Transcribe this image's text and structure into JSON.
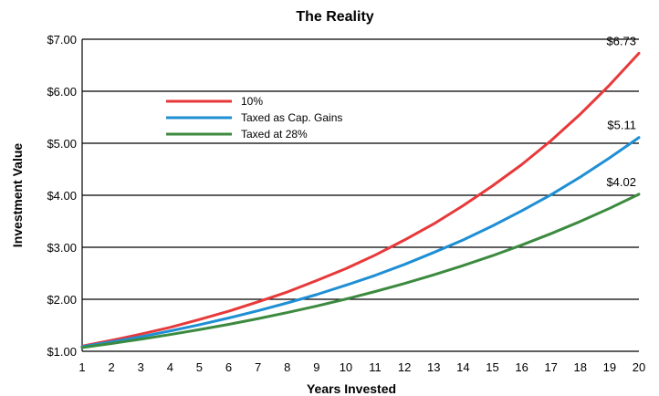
{
  "chart_data": {
    "type": "line",
    "title": "The Reality",
    "xlabel": "Years Invested",
    "ylabel": "Investment Value",
    "x": [
      1,
      2,
      3,
      4,
      5,
      6,
      7,
      8,
      9,
      10,
      11,
      12,
      13,
      14,
      15,
      16,
      17,
      18,
      19,
      20
    ],
    "xticks": [
      "1",
      "2",
      "3",
      "4",
      "5",
      "6",
      "7",
      "8",
      "9",
      "10",
      "11",
      "12",
      "13",
      "14",
      "15",
      "16",
      "17",
      "18",
      "19",
      "20"
    ],
    "yticks": [
      "$1.00",
      "$2.00",
      "$3.00",
      "$4.00",
      "$5.00",
      "$6.00",
      "$7.00"
    ],
    "ylim": [
      1,
      7
    ],
    "grid": "horizontal",
    "legend": "top-left",
    "series": [
      {
        "name": "10%",
        "color": "#e8393a",
        "values": [
          1.1,
          1.21,
          1.33,
          1.46,
          1.61,
          1.77,
          1.95,
          2.14,
          2.36,
          2.59,
          2.85,
          3.14,
          3.45,
          3.8,
          4.18,
          4.59,
          5.05,
          5.56,
          6.12,
          6.73
        ],
        "end_label": "$6.73"
      },
      {
        "name": "Taxed as Cap. Gains",
        "color": "#1f8fd4",
        "values": [
          1.09,
          1.18,
          1.28,
          1.39,
          1.51,
          1.64,
          1.78,
          1.93,
          2.09,
          2.27,
          2.46,
          2.67,
          2.9,
          3.14,
          3.41,
          3.7,
          4.01,
          4.35,
          4.72,
          5.11
        ],
        "end_label": "$5.11"
      },
      {
        "name": "Taxed at 28%",
        "color": "#3c8a3f",
        "values": [
          1.072,
          1.149,
          1.232,
          1.321,
          1.416,
          1.518,
          1.627,
          1.744,
          1.87,
          2.004,
          2.149,
          2.304,
          2.47,
          2.648,
          2.838,
          3.043,
          3.262,
          3.497,
          3.749,
          4.02
        ],
        "end_label": "$4.02"
      }
    ]
  }
}
